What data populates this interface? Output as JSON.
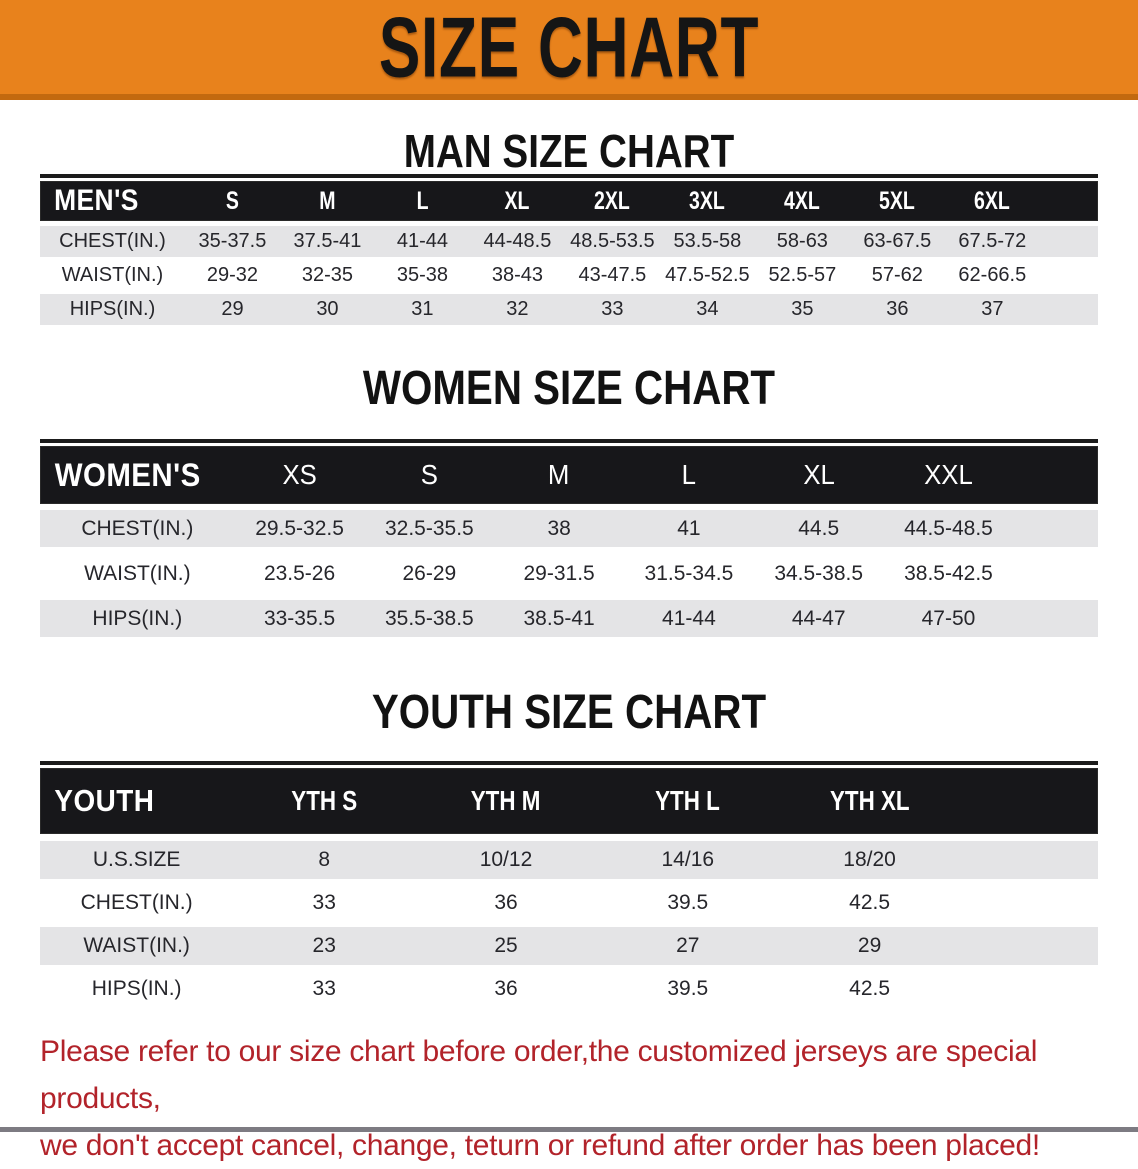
{
  "banner": {
    "title": "SIZE CHART"
  },
  "colors": {
    "banner_orange": "#E8821C",
    "banner_orange_dark": "#C2690F",
    "header_bar_black": "#17171a",
    "shaded_row_gray": "#e4e4e6",
    "disclaimer_red": "#B2232A"
  },
  "sections": [
    {
      "heading": "MAN SIZE CHART",
      "table": {
        "header_label": "MEN'S",
        "columns": [
          "S",
          "M",
          "L",
          "XL",
          "2XL",
          "3XL",
          "4XL",
          "5XL",
          "6XL"
        ],
        "rows": [
          {
            "label": "CHEST(IN.)",
            "values": [
              "35-37.5",
              "37.5-41",
              "41-44",
              "44-48.5",
              "48.5-53.5",
              "53.5-58",
              "58-63",
              "63-67.5",
              "67.5-72"
            ]
          },
          {
            "label": "WAIST(IN.)",
            "values": [
              "29-32",
              "32-35",
              "35-38",
              "38-43",
              "43-47.5",
              "47.5-52.5",
              "52.5-57",
              "57-62",
              "62-66.5"
            ]
          },
          {
            "label": "HIPS(IN.)",
            "values": [
              "29",
              "30",
              "31",
              "32",
              "33",
              "34",
              "35",
              "36",
              "37"
            ]
          }
        ]
      }
    },
    {
      "heading": "WOMEN SIZE CHART",
      "table": {
        "header_label": "WOMEN'S",
        "columns": [
          "XS",
          "S",
          "M",
          "L",
          "XL",
          "XXL"
        ],
        "rows": [
          {
            "label": "CHEST(IN.)",
            "values": [
              "29.5-32.5",
              "32.5-35.5",
              "38",
              "41",
              "44.5",
              "44.5-48.5"
            ]
          },
          {
            "label": "WAIST(IN.)",
            "values": [
              "23.5-26",
              "26-29",
              "29-31.5",
              "31.5-34.5",
              "34.5-38.5",
              "38.5-42.5"
            ]
          },
          {
            "label": "HIPS(IN.)",
            "values": [
              "33-35.5",
              "35.5-38.5",
              "38.5-41",
              "41-44",
              "44-47",
              "47-50"
            ]
          }
        ]
      }
    },
    {
      "heading": "YOUTH SIZE CHART",
      "table": {
        "header_label": "YOUTH",
        "columns": [
          "YTH S",
          "YTH M",
          "YTH L",
          "YTH XL"
        ],
        "rows": [
          {
            "label": "U.S.SIZE",
            "values": [
              "8",
              "10/12",
              "14/16",
              "18/20"
            ]
          },
          {
            "label": "CHEST(IN.)",
            "values": [
              "33",
              "36",
              "39.5",
              "42.5"
            ]
          },
          {
            "label": "WAIST(IN.)",
            "values": [
              "23",
              "25",
              "27",
              "29"
            ]
          },
          {
            "label": "HIPS(IN.)",
            "values": [
              "33",
              "36",
              "39.5",
              "42.5"
            ]
          }
        ]
      }
    }
  ],
  "footer": {
    "line1": "Please refer to our size chart before order,the customized jerseys are special products,",
    "line2": "we don't accept cancel, change, teturn or refund after order has been placed!"
  }
}
